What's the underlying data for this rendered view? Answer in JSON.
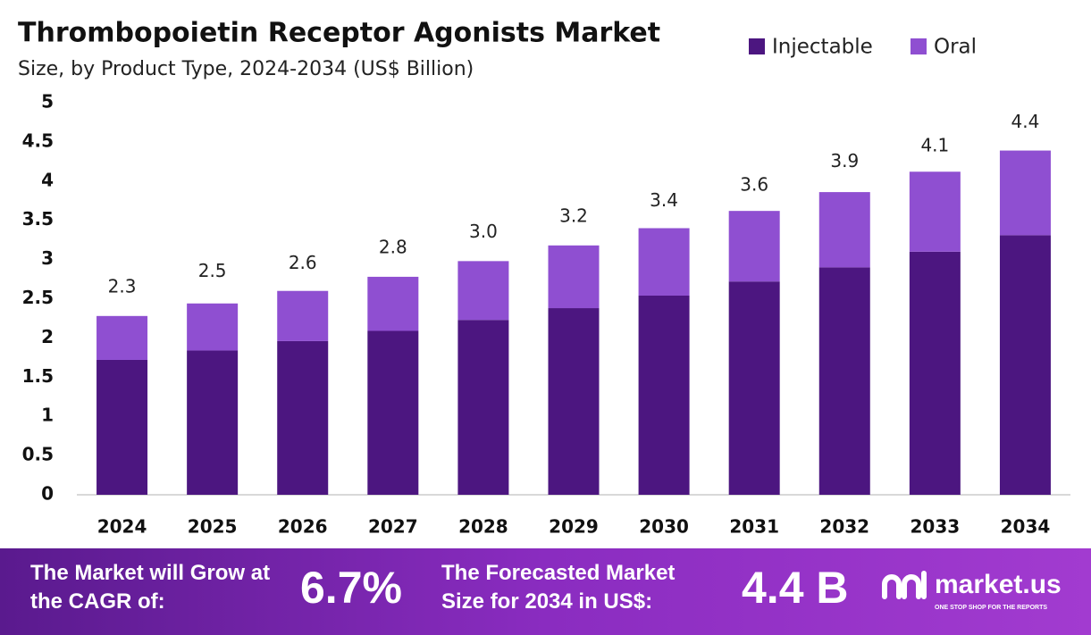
{
  "chart_data": {
    "type": "stacked_bar",
    "title": "Thrombopoietin Receptor Agonists Market",
    "subtitle": "Size, by Product Type, 2024-2034 (US$ Billion)",
    "categories": [
      "2024",
      "2025",
      "2026",
      "2027",
      "2028",
      "2029",
      "2030",
      "2031",
      "2032",
      "2033",
      "2034"
    ],
    "series": [
      {
        "name": "Injectable",
        "color": "#4c1680",
        "values": [
          1.72,
          1.84,
          1.96,
          2.09,
          2.23,
          2.38,
          2.54,
          2.72,
          2.9,
          3.1,
          3.31
        ]
      },
      {
        "name": "Oral",
        "color": "#8f4fd1",
        "values": [
          0.56,
          0.6,
          0.64,
          0.69,
          0.75,
          0.8,
          0.86,
          0.9,
          0.96,
          1.02,
          1.08
        ]
      }
    ],
    "totals": [
      2.3,
      2.5,
      2.6,
      2.8,
      3.0,
      3.2,
      3.4,
      3.6,
      3.9,
      4.1,
      4.4
    ],
    "total_labels": [
      "2.3",
      "2.5",
      "2.6",
      "2.8",
      "3.0",
      "3.2",
      "3.4",
      "3.6",
      "3.9",
      "4.1",
      "4.4"
    ],
    "ylim": [
      0,
      5
    ],
    "yticks": [
      0,
      0.5,
      1,
      1.5,
      2,
      2.5,
      3,
      3.5,
      4,
      4.5,
      5
    ],
    "grid": false,
    "legend": "top-right"
  },
  "footer": {
    "cagr_text": "The Market will Grow at the CAGR of:",
    "cagr_value": "6.7%",
    "forecast_text": "The Forecasted Market Size for 2034 in US$:",
    "forecast_value": "4.4 B",
    "brand": "market.us",
    "tagline": "ONE STOP SHOP FOR THE REPORTS"
  }
}
